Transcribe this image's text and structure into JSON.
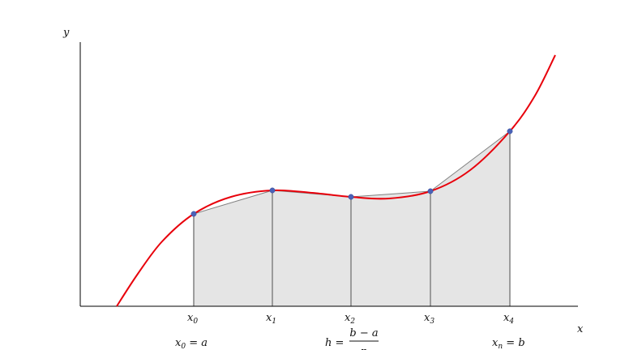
{
  "axes": {
    "y_label": "y",
    "x_label": "x"
  },
  "curve": {
    "color": "#e8000b",
    "description_free": true
  },
  "nodes": [
    {
      "base": "x",
      "sub": "0"
    },
    {
      "base": "x",
      "sub": "1"
    },
    {
      "base": "x",
      "sub": "2"
    },
    {
      "base": "x",
      "sub": "3"
    },
    {
      "base": "x",
      "sub": "4"
    }
  ],
  "formulas": {
    "left": {
      "lhs_base": "x",
      "lhs_sub": "0",
      "rhs": "a"
    },
    "middle": {
      "lhs": "h",
      "numerator": "b − a",
      "denominator": "n"
    },
    "right": {
      "lhs_base": "x",
      "lhs_sub": "n",
      "rhs": "b"
    }
  },
  "colors": {
    "curve": "#e8000b",
    "fill": "#e5e5e5",
    "points": "#4a62b8",
    "ordinates": "#888888"
  }
}
